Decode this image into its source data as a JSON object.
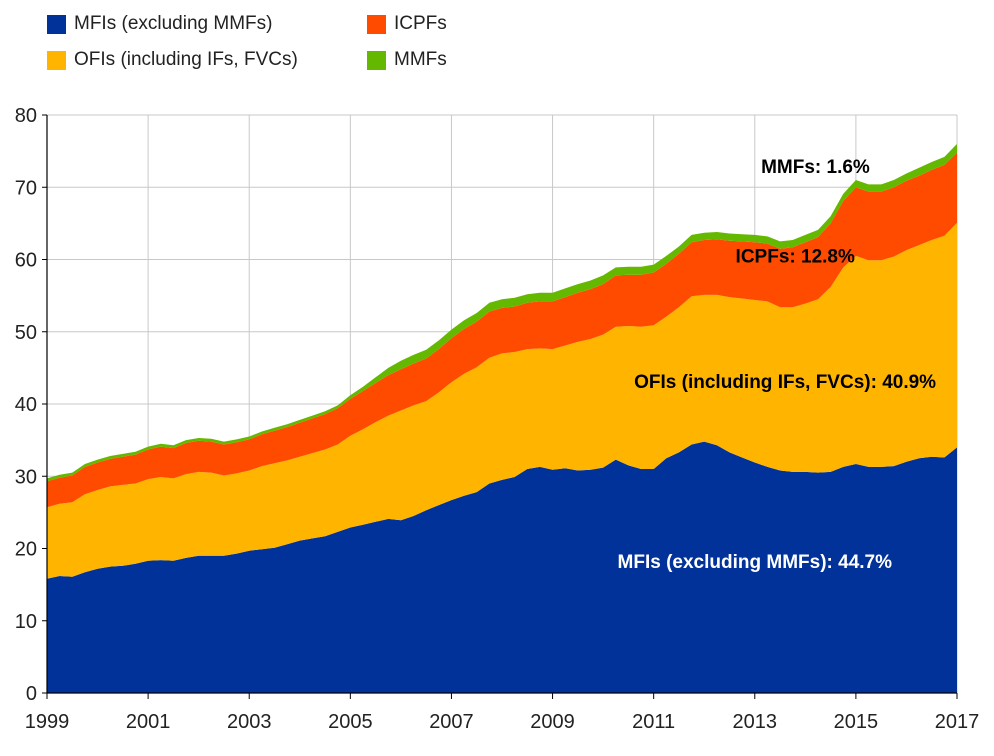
{
  "chart_data": {
    "type": "area",
    "stacked": true,
    "x": [
      1999.0,
      1999.25,
      1999.5,
      1999.75,
      2000.0,
      2000.25,
      2000.5,
      2000.75,
      2001.0,
      2001.25,
      2001.5,
      2001.75,
      2002.0,
      2002.25,
      2002.5,
      2002.75,
      2003.0,
      2003.25,
      2003.5,
      2003.75,
      2004.0,
      2004.25,
      2004.5,
      2004.75,
      2005.0,
      2005.25,
      2005.5,
      2005.75,
      2006.0,
      2006.25,
      2006.5,
      2006.75,
      2007.0,
      2007.25,
      2007.5,
      2007.75,
      2008.0,
      2008.25,
      2008.5,
      2008.75,
      2009.0,
      2009.25,
      2009.5,
      2009.75,
      2010.0,
      2010.25,
      2010.5,
      2010.75,
      2011.0,
      2011.25,
      2011.5,
      2011.75,
      2012.0,
      2012.25,
      2012.5,
      2012.75,
      2013.0,
      2013.25,
      2013.5,
      2013.75,
      2014.0,
      2014.25,
      2014.5,
      2014.75,
      2015.0,
      2015.25,
      2015.5,
      2015.75,
      2016.0,
      2016.25,
      2016.5,
      2016.75,
      2017.0
    ],
    "series": [
      {
        "name": "MFIs (excluding MMFs)",
        "color": "#003299",
        "values": [
          15.8,
          16.2,
          16.1,
          16.7,
          17.2,
          17.5,
          17.6,
          17.9,
          18.3,
          18.4,
          18.3,
          18.7,
          19.0,
          19.0,
          19.0,
          19.3,
          19.7,
          19.9,
          20.1,
          20.6,
          21.1,
          21.4,
          21.7,
          22.3,
          22.9,
          23.3,
          23.7,
          24.1,
          23.9,
          24.5,
          25.3,
          26.0,
          26.7,
          27.3,
          27.8,
          29.0,
          29.5,
          29.9,
          31.0,
          31.3,
          30.9,
          31.1,
          30.8,
          30.9,
          31.2,
          32.3,
          31.5,
          31.0,
          31.0,
          32.5,
          33.3,
          34.4,
          34.8,
          34.3,
          33.3,
          32.6,
          31.9,
          31.3,
          30.8,
          30.6,
          30.6,
          30.5,
          30.6,
          31.3,
          31.7,
          31.3,
          31.3,
          31.4,
          32.0,
          32.5,
          32.7,
          32.6,
          34.0
        ]
      },
      {
        "name": "OFIs (including IFs, FVCs)",
        "color": "#FFB400",
        "values": [
          9.9,
          10.0,
          10.3,
          10.8,
          10.9,
          11.1,
          11.2,
          11.1,
          11.3,
          11.5,
          11.4,
          11.6,
          11.6,
          11.5,
          11.1,
          11.1,
          11.1,
          11.5,
          11.7,
          11.6,
          11.6,
          11.8,
          12.0,
          12.1,
          12.7,
          13.2,
          13.8,
          14.3,
          15.2,
          15.3,
          15.1,
          15.6,
          16.3,
          16.9,
          17.3,
          17.4,
          17.5,
          17.3,
          16.6,
          16.4,
          16.7,
          17.0,
          17.8,
          18.1,
          18.4,
          18.4,
          19.3,
          19.7,
          19.9,
          19.6,
          20.1,
          20.5,
          20.3,
          20.8,
          21.5,
          22.0,
          22.5,
          22.9,
          22.6,
          22.8,
          23.3,
          24.0,
          25.6,
          27.6,
          28.8,
          28.6,
          28.6,
          29.0,
          29.3,
          29.5,
          30.0,
          30.7,
          31.1
        ]
      },
      {
        "name": "ICPFs",
        "color": "#FF4B00",
        "values": [
          3.6,
          3.6,
          3.7,
          3.8,
          3.8,
          3.8,
          3.9,
          4.0,
          4.1,
          4.2,
          4.2,
          4.3,
          4.3,
          4.3,
          4.3,
          4.3,
          4.3,
          4.4,
          4.5,
          4.6,
          4.7,
          4.8,
          4.9,
          5.0,
          5.1,
          5.3,
          5.4,
          5.6,
          5.7,
          5.8,
          5.9,
          6.0,
          6.1,
          6.2,
          6.3,
          6.4,
          6.3,
          6.3,
          6.4,
          6.5,
          6.6,
          6.7,
          6.8,
          6.9,
          7.0,
          7.1,
          7.1,
          7.2,
          7.3,
          7.3,
          7.4,
          7.5,
          7.6,
          7.7,
          7.8,
          7.9,
          8.0,
          8.0,
          8.1,
          8.3,
          8.5,
          8.6,
          8.8,
          9.2,
          9.5,
          9.5,
          9.5,
          9.6,
          9.6,
          9.6,
          9.7,
          9.8,
          9.7
        ]
      },
      {
        "name": "MMFs",
        "color": "#65B800",
        "values": [
          0.4,
          0.4,
          0.4,
          0.4,
          0.4,
          0.4,
          0.4,
          0.4,
          0.4,
          0.4,
          0.4,
          0.4,
          0.4,
          0.4,
          0.4,
          0.4,
          0.4,
          0.4,
          0.4,
          0.4,
          0.4,
          0.4,
          0.4,
          0.4,
          0.5,
          0.6,
          0.8,
          1.0,
          1.2,
          1.2,
          1.2,
          1.2,
          1.2,
          1.2,
          1.2,
          1.2,
          1.2,
          1.2,
          1.2,
          1.2,
          1.2,
          1.2,
          1.2,
          1.2,
          1.2,
          1.1,
          1.1,
          1.1,
          1.1,
          1.1,
          1.0,
          1.0,
          1.0,
          1.0,
          1.0,
          1.0,
          1.0,
          1.0,
          1.0,
          1.0,
          1.0,
          1.0,
          1.0,
          1.0,
          1.0,
          1.0,
          1.0,
          1.0,
          1.0,
          1.1,
          1.1,
          1.1,
          1.2
        ]
      }
    ],
    "title": "",
    "xlabel": "",
    "ylabel": "",
    "xlim": [
      1999,
      2017
    ],
    "ylim": [
      0,
      80
    ],
    "x_ticks": [
      "1999",
      "2001",
      "2003",
      "2005",
      "2007",
      "2009",
      "2011",
      "2013",
      "2015",
      "2017"
    ],
    "y_ticks": [
      "0",
      "10",
      "20",
      "30",
      "40",
      "50",
      "60",
      "70",
      "80"
    ],
    "grid": true,
    "legend_placement": "top-left",
    "legend": [
      {
        "label": "MFIs (excluding MMFs)",
        "color": "#003299"
      },
      {
        "label": "ICPFs",
        "color": "#FF4B00"
      },
      {
        "label": "OFIs (including IFs, FVCs)",
        "color": "#FFB400"
      },
      {
        "label": "MMFs",
        "color": "#65B800"
      }
    ],
    "annotations": [
      {
        "text": "MMFs: 1.6%",
        "color": "#000000"
      },
      {
        "text": "ICPFs: 12.8%",
        "color": "#000000"
      },
      {
        "text": "OFIs (including IFs, FVCs): 40.9%",
        "color": "#000000"
      },
      {
        "text": "MFIs (excluding MMFs): 44.7%",
        "color": "#ffffff"
      }
    ]
  }
}
